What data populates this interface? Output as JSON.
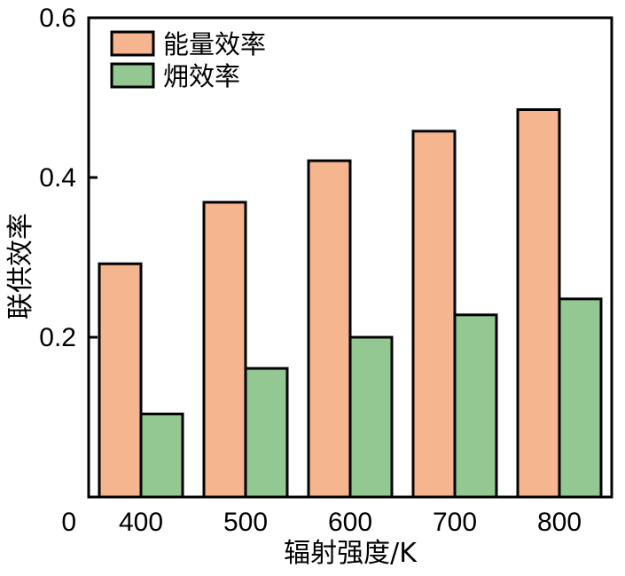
{
  "chart_data": {
    "type": "bar",
    "title": "",
    "xlabel": "辐射强度/K",
    "ylabel": "联供效率",
    "categories": [
      "400",
      "500",
      "600",
      "700",
      "800"
    ],
    "series": [
      {
        "name": "能量效率",
        "color": "#F5B58E",
        "values": [
          0.292,
          0.369,
          0.421,
          0.458,
          0.485
        ]
      },
      {
        "name": "㶲效率",
        "color": "#93C893",
        "values": [
          0.104,
          0.161,
          0.2,
          0.228,
          0.248
        ]
      }
    ],
    "ylim": [
      0,
      0.6
    ],
    "yticks": [
      {
        "value": 0,
        "label": "0"
      },
      {
        "value": 0.2,
        "label": "0.2"
      },
      {
        "value": 0.4,
        "label": "0.4"
      },
      {
        "value": 0.6,
        "label": "0.6"
      }
    ],
    "grid": false,
    "legend_position": "top-left"
  }
}
